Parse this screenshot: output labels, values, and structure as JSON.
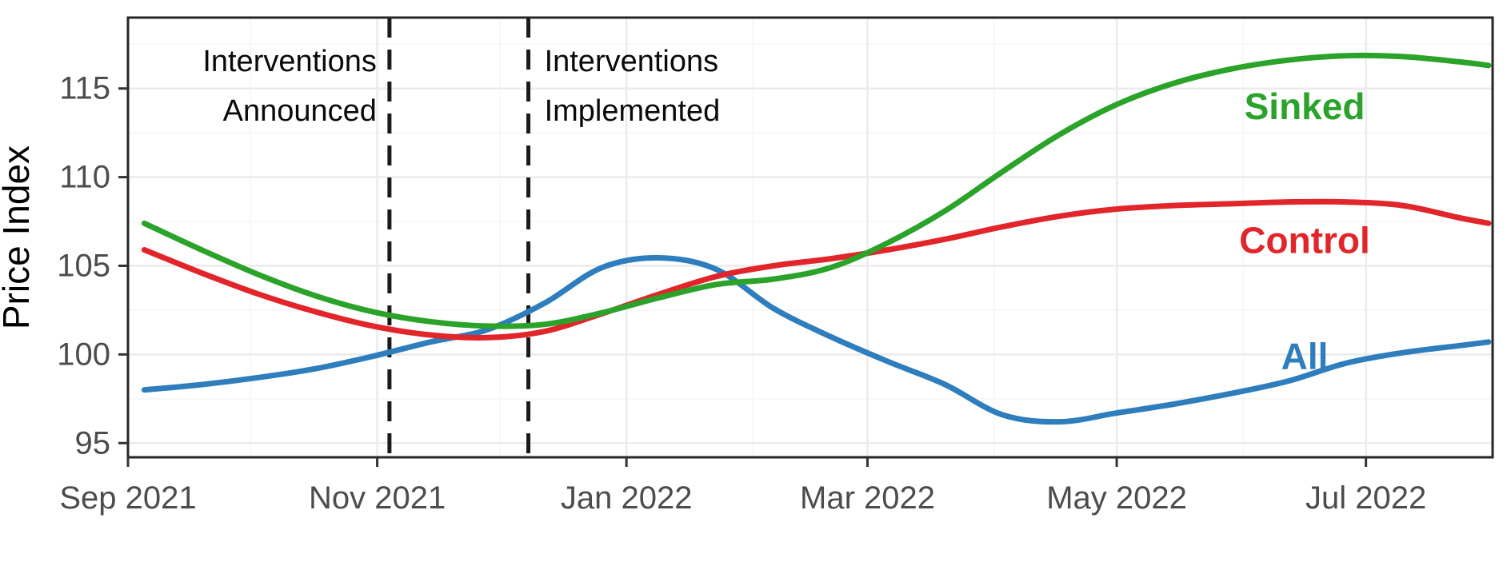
{
  "chart_data": {
    "type": "line",
    "title": "",
    "xlabel": "",
    "ylabel": "Price Index",
    "x_axis": {
      "range": [
        "2021-09-01",
        "2022-08-01"
      ],
      "tick_dates": [
        "2021-09-01",
        "2021-11-01",
        "2022-01-01",
        "2022-03-01",
        "2022-05-01",
        "2022-07-01"
      ],
      "tick_labels": [
        "Sep 2021",
        "Nov 2021",
        "Jan 2022",
        "Mar 2022",
        "May 2022",
        "Jul 2022"
      ],
      "minor_gridline_dates": [
        "2021-10-01",
        "2021-12-01",
        "2022-02-01",
        "2022-04-01",
        "2022-06-01"
      ]
    },
    "y_axis": {
      "range": [
        94.2,
        119.0
      ],
      "ticks": [
        95,
        100,
        105,
        110,
        115
      ],
      "minor_gridlines": [
        97.5,
        102.5,
        107.5,
        112.5,
        117.5
      ]
    },
    "grid": {
      "on": true,
      "major_color": "#ebebeb",
      "minor_color": "#f5f5f5"
    },
    "legend": {
      "position": "direct-labels"
    },
    "annotations": {
      "vlines": [
        {
          "date": "2021-11-04",
          "style": "dashed",
          "color": "#1a1a1a",
          "text_lines": [
            "Interventions",
            "Announced"
          ],
          "text_side": "left"
        },
        {
          "date": "2021-12-08",
          "style": "dashed",
          "color": "#1a1a1a",
          "text_lines": [
            "Interventions",
            "Implemented"
          ],
          "text_side": "right"
        }
      ]
    },
    "series": [
      {
        "name": "All",
        "color": "#2e7ebd",
        "label": {
          "text": "All",
          "date": "2022-06-16",
          "value": 99.9
        },
        "points": [
          [
            "2021-09-05",
            98.0
          ],
          [
            "2021-09-19",
            98.3
          ],
          [
            "2021-10-03",
            98.7
          ],
          [
            "2021-10-17",
            99.2
          ],
          [
            "2021-10-31",
            99.9
          ],
          [
            "2021-11-14",
            100.7
          ],
          [
            "2021-11-28",
            101.4
          ],
          [
            "2021-12-12",
            102.9
          ],
          [
            "2021-12-26",
            104.9
          ],
          [
            "2022-01-09",
            105.45
          ],
          [
            "2022-01-23",
            104.8
          ],
          [
            "2022-02-06",
            102.6
          ],
          [
            "2022-02-20",
            101.0
          ],
          [
            "2022-03-06",
            99.6
          ],
          [
            "2022-03-20",
            98.3
          ],
          [
            "2022-04-03",
            96.6
          ],
          [
            "2022-04-17",
            96.2
          ],
          [
            "2022-05-01",
            96.7
          ],
          [
            "2022-05-15",
            97.2
          ],
          [
            "2022-05-29",
            97.8
          ],
          [
            "2022-06-12",
            98.5
          ],
          [
            "2022-06-26",
            99.5
          ],
          [
            "2022-07-10",
            100.1
          ],
          [
            "2022-07-24",
            100.5
          ],
          [
            "2022-07-31",
            100.7
          ]
        ]
      },
      {
        "name": "Control",
        "color": "#e1252b",
        "label": {
          "text": "Control",
          "date": "2022-06-16",
          "value": 106.45
        },
        "points": [
          [
            "2021-09-05",
            105.9
          ],
          [
            "2021-09-19",
            104.6
          ],
          [
            "2021-10-03",
            103.4
          ],
          [
            "2021-10-17",
            102.4
          ],
          [
            "2021-10-31",
            101.6
          ],
          [
            "2021-11-14",
            101.1
          ],
          [
            "2021-11-28",
            100.95
          ],
          [
            "2021-12-12",
            101.3
          ],
          [
            "2021-12-26",
            102.3
          ],
          [
            "2022-01-09",
            103.4
          ],
          [
            "2022-01-23",
            104.4
          ],
          [
            "2022-02-06",
            105.0
          ],
          [
            "2022-02-20",
            105.4
          ],
          [
            "2022-03-06",
            105.9
          ],
          [
            "2022-03-20",
            106.5
          ],
          [
            "2022-04-03",
            107.2
          ],
          [
            "2022-04-17",
            107.8
          ],
          [
            "2022-05-01",
            108.2
          ],
          [
            "2022-05-15",
            108.4
          ],
          [
            "2022-05-29",
            108.5
          ],
          [
            "2022-06-12",
            108.6
          ],
          [
            "2022-06-26",
            108.6
          ],
          [
            "2022-07-10",
            108.4
          ],
          [
            "2022-07-24",
            107.7
          ],
          [
            "2022-07-31",
            107.4
          ]
        ]
      },
      {
        "name": "Sinked",
        "color": "#2ba32b",
        "label": {
          "text": "Sinked",
          "date": "2022-06-16",
          "value": 114.0
        },
        "points": [
          [
            "2021-09-05",
            107.4
          ],
          [
            "2021-09-19",
            105.9
          ],
          [
            "2021-10-03",
            104.5
          ],
          [
            "2021-10-17",
            103.3
          ],
          [
            "2021-10-31",
            102.4
          ],
          [
            "2021-11-14",
            101.85
          ],
          [
            "2021-11-28",
            101.6
          ],
          [
            "2021-12-12",
            101.7
          ],
          [
            "2021-12-26",
            102.35
          ],
          [
            "2022-01-09",
            103.2
          ],
          [
            "2022-01-23",
            103.95
          ],
          [
            "2022-02-06",
            104.25
          ],
          [
            "2022-02-20",
            104.9
          ],
          [
            "2022-03-06",
            106.3
          ],
          [
            "2022-03-20",
            108.1
          ],
          [
            "2022-04-03",
            110.3
          ],
          [
            "2022-04-17",
            112.4
          ],
          [
            "2022-05-01",
            114.1
          ],
          [
            "2022-05-15",
            115.3
          ],
          [
            "2022-05-29",
            116.1
          ],
          [
            "2022-06-12",
            116.6
          ],
          [
            "2022-06-26",
            116.85
          ],
          [
            "2022-07-10",
            116.8
          ],
          [
            "2022-07-24",
            116.5
          ],
          [
            "2022-07-31",
            116.3
          ]
        ]
      }
    ],
    "axis_text_color": "#4c4c4c",
    "annotation_text_color": "#0a0a0a",
    "panel_border_color": "#262626"
  }
}
